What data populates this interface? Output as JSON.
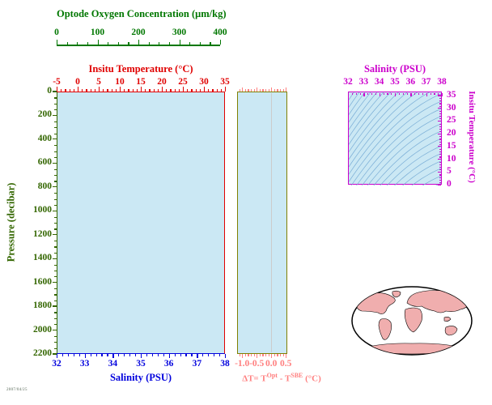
{
  "page": {
    "stamp": "2007/04/25"
  },
  "colors": {
    "oxygen": "#007700",
    "temperature": "#e00000",
    "pressure": "#336600",
    "salinity": "#0000dd",
    "delta": "#ff8080",
    "delta_frame": "#808000",
    "ts": "#cc00cc",
    "plot_fill": "#cbe8f4",
    "contour": "#79add6",
    "land": "#f0aeae"
  },
  "oxygen_axis": {
    "label": "Optode Oxygen Concentration (μm/kg)",
    "ticks": [
      "0",
      "100",
      "200",
      "300",
      "400"
    ]
  },
  "temperature_axis": {
    "label": "Insitu Temperature (°C)",
    "ticks": [
      "-5",
      "0",
      "5",
      "10",
      "15",
      "20",
      "25",
      "30",
      "35"
    ]
  },
  "pressure_axis": {
    "label": "Pressure (decibar)",
    "ticks": [
      "0",
      "200",
      "400",
      "600",
      "800",
      "1000",
      "1200",
      "1400",
      "1600",
      "1800",
      "2000",
      "2200"
    ]
  },
  "salinity_axis": {
    "label": "Salinity (PSU)",
    "ticks": [
      "32",
      "33",
      "34",
      "35",
      "36",
      "37",
      "38"
    ]
  },
  "delta_axis": {
    "label_parts": [
      "ΔT= T",
      "Opt",
      " - T",
      "SBE",
      " (°C)"
    ],
    "ticks": [
      "-1.0",
      "-0.5",
      "0.0",
      "0.5"
    ]
  },
  "ts_plot": {
    "salinity_axis": {
      "label": "Salinity (PSU)",
      "ticks": [
        "32",
        "33",
        "34",
        "35",
        "36",
        "37",
        "38"
      ]
    },
    "temperature_axis": {
      "label": "Insitu Temperature (°C)",
      "ticks": [
        "0",
        "5",
        "10",
        "15",
        "20",
        "25",
        "30",
        "35"
      ]
    }
  },
  "chart_data": [
    {
      "type": "line",
      "title": "",
      "xlabel": "Salinity (PSU)",
      "xlabel_top": "Insitu Temperature (°C)",
      "xlabel_top2": "Optode Oxygen Concentration (μm/kg)",
      "ylabel": "Pressure (decibar)",
      "xlim": [
        32,
        38
      ],
      "xlim_top": [
        -5,
        35
      ],
      "xlim_top2": [
        0,
        400
      ],
      "ylim": [
        2200,
        0
      ],
      "grid": false,
      "series": [],
      "note": "empty profile axes, no data curves plotted"
    },
    {
      "type": "line",
      "title": "",
      "xlabel": "ΔT= T^Opt - T^SBE (°C)",
      "ylabel": "Pressure (decibar, shared)",
      "xlim": [
        -1.17,
        0.55
      ],
      "ylim": [
        2200,
        0
      ],
      "grid": false,
      "series": [],
      "note": "empty difference axes, faint zero reference line"
    },
    {
      "type": "line",
      "title": "",
      "xlabel": "Salinity (PSU)",
      "ylabel": "Insitu Temperature (°C)",
      "xlim": [
        32,
        38
      ],
      "ylim": [
        0,
        35
      ],
      "grid": false,
      "series": [],
      "note": "T-S diagram with isopycnal contour background only, no data points"
    }
  ]
}
